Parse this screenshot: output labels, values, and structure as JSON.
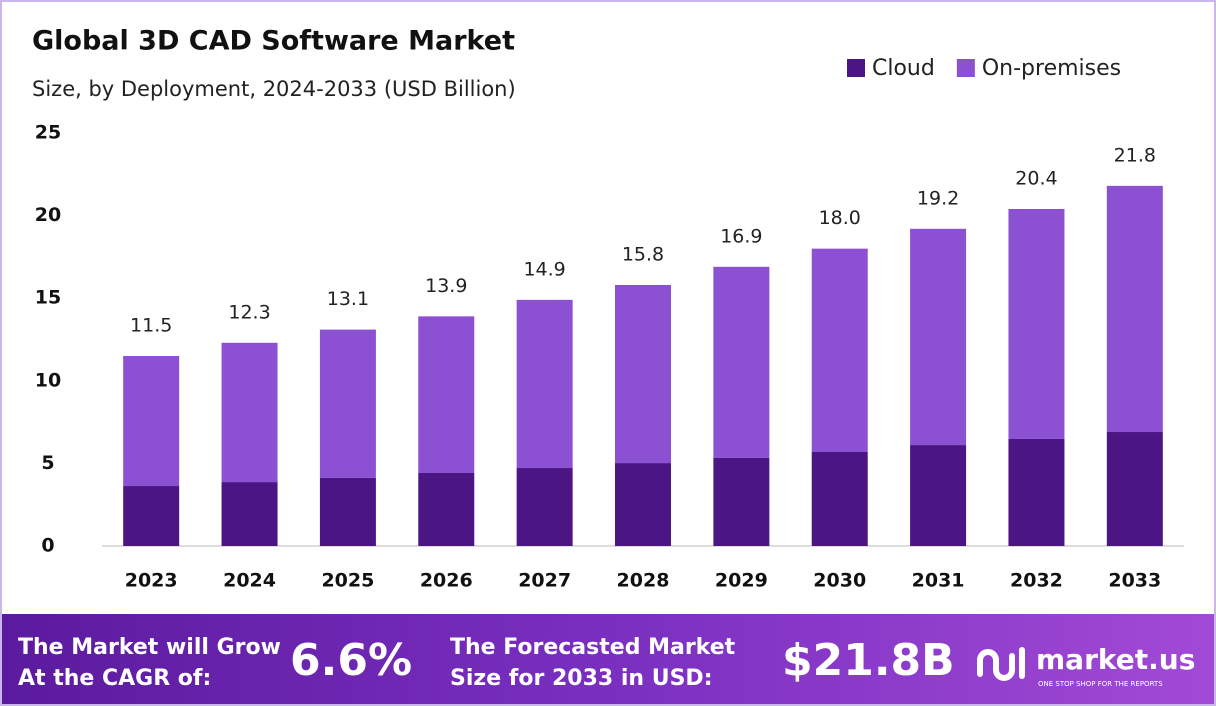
{
  "chart_data": {
    "type": "stacked-bar",
    "title": "Global 3D CAD Software Market",
    "subtitle": "Size, by Deployment, 2024-2033 (USD Billion)",
    "categories": [
      "2023",
      "2024",
      "2025",
      "2026",
      "2027",
      "2028",
      "2029",
      "2030",
      "2031",
      "2032",
      "2033"
    ],
    "series": [
      {
        "name": "Cloud",
        "color": "#4c1584",
        "values": [
          3.63,
          3.87,
          4.12,
          4.42,
          4.72,
          5.02,
          5.33,
          5.69,
          6.11,
          6.48,
          6.9
        ]
      },
      {
        "name": "On-premises",
        "color": "#8c50d2",
        "values": [
          7.87,
          8.43,
          8.98,
          9.48,
          10.18,
          10.78,
          11.57,
          12.31,
          13.09,
          13.92,
          14.9
        ]
      }
    ],
    "totals": [
      11.5,
      12.3,
      13.1,
      13.9,
      14.9,
      15.8,
      16.9,
      {
        "value": 18,
        "label": "18.0"
      },
      19.2,
      20.4,
      21.8
    ],
    "ylim": [
      0,
      25
    ],
    "yticks": [
      0,
      5,
      10,
      15,
      20,
      25
    ],
    "grid": false,
    "legend": "top-right"
  },
  "footer": {
    "cagr_text": [
      "The Market will Grow",
      "At the CAGR of:"
    ],
    "cagr_value": "6.6%",
    "forecast_text": [
      "The Forecasted Market",
      "Size for 2033 in USD:"
    ],
    "forecast_value": "$21.8B",
    "brand": "market.us",
    "tagline": "ONE STOP SHOP FOR THE REPORTS"
  }
}
